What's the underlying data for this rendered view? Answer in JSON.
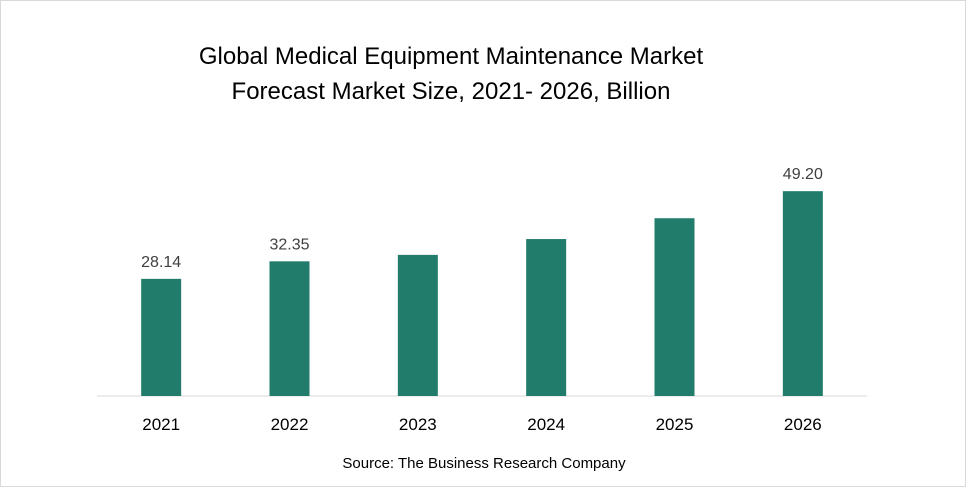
{
  "chart_data": {
    "type": "bar",
    "title_lines": [
      "Global Medical Equipment Maintenance Market",
      "Forecast Market Size, 2021- 2026, Billion"
    ],
    "categories": [
      "2021",
      "2022",
      "2023",
      "2024",
      "2025",
      "2026"
    ],
    "values": [
      28.14,
      32.35,
      33.9,
      37.7,
      42.7,
      49.2
    ],
    "data_labels": [
      "28.14",
      "32.35",
      "",
      "",
      "",
      "49.20"
    ],
    "xlabel": "",
    "ylabel": "",
    "ylim": [
      0,
      55
    ],
    "grid": false,
    "legend": "none",
    "bar_color": "#217C6B",
    "axis_color": "#d9d9d9",
    "source": "Source: The Business Research Company"
  }
}
